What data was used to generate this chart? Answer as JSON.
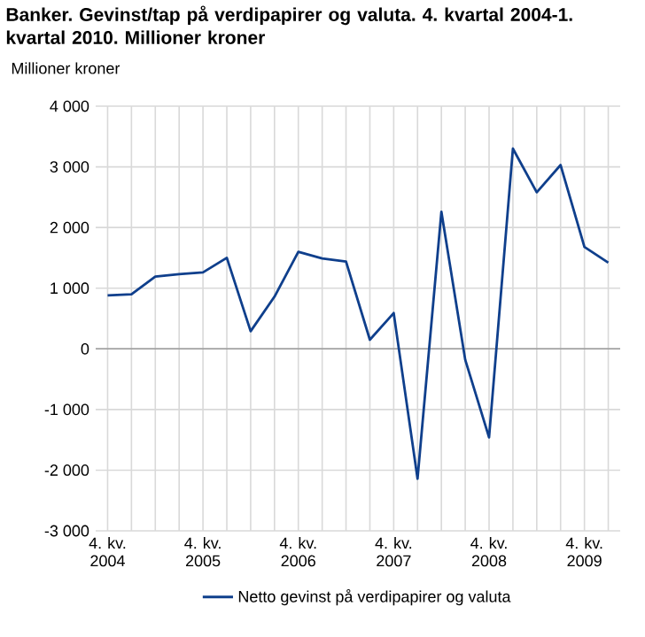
{
  "chart_data": {
    "type": "line",
    "title": "Banker. Gevinst/tap på verdipapirer og valuta. 4. kvartal 2004-1. kvartal 2010. Millioner kroner",
    "ylabel": "Millioner kroner",
    "categories": [
      "4. kv. 2004",
      null,
      null,
      null,
      "4. kv. 2005",
      null,
      null,
      null,
      "4. kv. 2006",
      null,
      null,
      null,
      "4. kv. 2007",
      null,
      null,
      null,
      "4. kv. 2008",
      null,
      null,
      null,
      "4. kv. 2009",
      null
    ],
    "series": [
      {
        "name": "Netto gevinst på verdipapirer og valuta",
        "color": "#0f3f8c",
        "values": [
          880,
          900,
          1190,
          1230,
          1260,
          1500,
          290,
          860,
          1600,
          1490,
          1440,
          150,
          590,
          -2140,
          2260,
          -180,
          -1460,
          3300,
          2580,
          3030,
          1680,
          1420
        ]
      }
    ],
    "ylim": [
      -3000,
      4000
    ],
    "yticks": [
      {
        "value": -3000,
        "label": "-3 000"
      },
      {
        "value": -2000,
        "label": "-2 000"
      },
      {
        "value": -1000,
        "label": "-1 000"
      },
      0,
      {
        "value": 1000,
        "label": "1 000"
      },
      {
        "value": 2000,
        "label": "2 000"
      },
      {
        "value": 3000,
        "label": "3 000"
      },
      {
        "value": 4000,
        "label": "4 000"
      }
    ],
    "grid": true,
    "legend": "bottom",
    "marker": "none",
    "line_style": "solid"
  }
}
